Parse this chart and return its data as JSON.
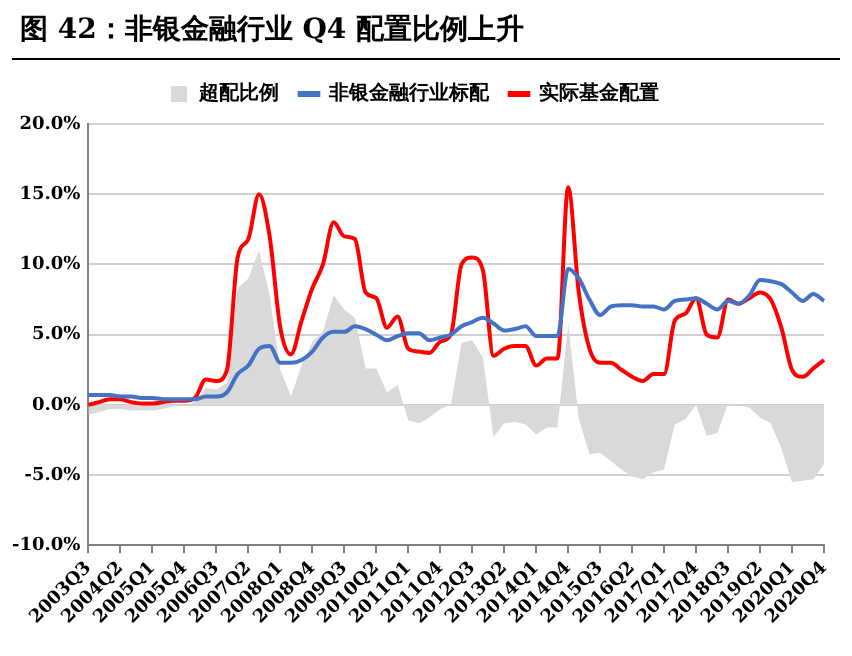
{
  "chart_data": {
    "type": "line",
    "title": "图 42：非银金融行业 Q4 配置比例上升",
    "categories": [
      "2003Q3",
      null,
      null,
      "2004Q2",
      null,
      null,
      "2005Q1",
      null,
      null,
      "2005Q4",
      null,
      null,
      "2006Q3",
      null,
      null,
      "2007Q2",
      null,
      null,
      "2008Q1",
      null,
      null,
      "2008Q4",
      null,
      null,
      "2009Q3",
      null,
      null,
      "2010Q2",
      null,
      null,
      "2011Q1",
      null,
      null,
      "2011Q4",
      null,
      null,
      "2012Q3",
      null,
      null,
      "2013Q2",
      null,
      null,
      "2014Q1",
      null,
      null,
      "2014Q4",
      null,
      null,
      "2015Q3",
      null,
      null,
      "2016Q2",
      null,
      null,
      "2017Q1",
      null,
      null,
      "2017Q4",
      null,
      null,
      "2018Q3",
      null,
      null,
      "2019Q2",
      null,
      null,
      "2020Q1",
      null,
      null,
      "2020Q4"
    ],
    "series": [
      {
        "name": "超配比例",
        "type": "area",
        "color": "#d9d9d9",
        "values": [
          -0.7,
          -0.5,
          -0.3,
          -0.3,
          -0.4,
          -0.4,
          -0.4,
          -0.3,
          -0.1,
          -0.1,
          0.2,
          1.2,
          1.1,
          1.6,
          8.3,
          9.0,
          11.0,
          7.8,
          2.5,
          0.6,
          2.8,
          4.5,
          5.2,
          7.8,
          6.8,
          6.2,
          2.6,
          2.6,
          0.9,
          1.4,
          -1.1,
          -1.3,
          -0.9,
          -0.3,
          0,
          4.4,
          4.6,
          3.4,
          -2.3,
          -1.3,
          -1.2,
          -1.4,
          -2.1,
          -1.6,
          -1.6,
          5.8,
          -1.0,
          -3.5,
          -3.4,
          -4.0,
          -4.6,
          -5.1,
          -5.3,
          -4.8,
          -4.6,
          -1.4,
          -1.0,
          0,
          -2.2,
          -2.0,
          0.1,
          0,
          -0.2,
          -0.9,
          -1.3,
          -3.1,
          -5.5,
          -5.4,
          -5.3,
          -4.2
        ]
      },
      {
        "name": "非银金融行业标配",
        "type": "line",
        "color": "#4472c4",
        "values": [
          0.7,
          0.7,
          0.7,
          0.6,
          0.6,
          0.5,
          0.5,
          0.4,
          0.4,
          0.4,
          0.4,
          0.6,
          0.6,
          0.9,
          2.2,
          2.8,
          4.0,
          4.2,
          3.0,
          3.0,
          3.2,
          3.8,
          4.8,
          5.2,
          5.2,
          5.6,
          5.4,
          5.0,
          4.6,
          4.9,
          5.1,
          5.1,
          4.6,
          4.8,
          5.0,
          5.6,
          5.9,
          6.2,
          5.8,
          5.3,
          5.4,
          5.6,
          4.9,
          4.9,
          4.9,
          9.7,
          9.0,
          7.5,
          6.4,
          7.0,
          7.1,
          7.1,
          7.0,
          7.0,
          6.8,
          7.4,
          7.5,
          7.6,
          7.2,
          6.8,
          7.4,
          7.2,
          7.8,
          8.9,
          8.8,
          8.6,
          8.0,
          7.4,
          7.9,
          7.4
        ]
      },
      {
        "name": "实际基金配置",
        "type": "line",
        "color": "#ff0000",
        "values": [
          0,
          0.2,
          0.4,
          0.4,
          0.2,
          0.1,
          0.1,
          0.2,
          0.3,
          0.3,
          0.5,
          1.8,
          1.7,
          2.5,
          10.5,
          11.8,
          15.0,
          12.0,
          5.5,
          3.6,
          6.0,
          8.3,
          10.0,
          13.0,
          12.0,
          11.8,
          8.0,
          7.6,
          5.5,
          6.3,
          4.0,
          3.8,
          3.7,
          4.5,
          5.0,
          10.0,
          10.5,
          9.6,
          3.5,
          4.0,
          4.2,
          4.2,
          2.8,
          3.3,
          3.3,
          15.5,
          8.0,
          4.0,
          3.0,
          3.0,
          2.5,
          2.0,
          1.7,
          2.2,
          2.2,
          6.0,
          6.5,
          7.6,
          5.0,
          4.8,
          7.5,
          7.2,
          7.6,
          8.0,
          7.5,
          5.5,
          2.5,
          2.0,
          2.6,
          3.2
        ]
      }
    ],
    "ylim": [
      -10,
      20
    ],
    "yticks": [
      {
        "value": -10,
        "label": "-10.0%"
      },
      {
        "value": -5,
        "label": "-5.0%"
      },
      {
        "value": 0,
        "label": "0.0%"
      },
      {
        "value": 5,
        "label": "5.0%"
      },
      {
        "value": 10,
        "label": "10.0%"
      },
      {
        "value": 15,
        "label": "15.0%"
      },
      {
        "value": 20,
        "label": "20.0%"
      }
    ],
    "grid": "y",
    "legend": "top",
    "marker": "none",
    "line_style": "solid"
  }
}
